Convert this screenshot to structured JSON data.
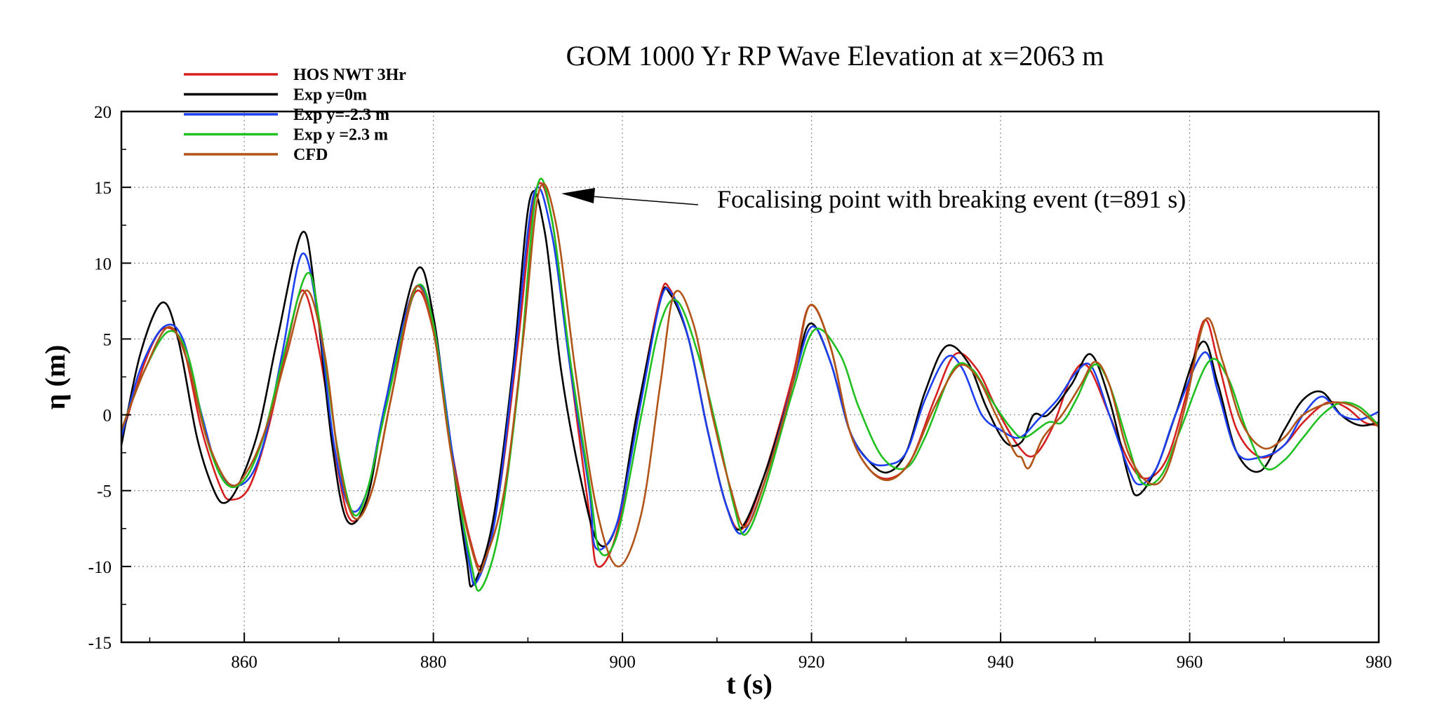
{
  "chart_data": {
    "type": "line",
    "title": "GOM 1000 Yr RP Wave Elevation at x=2063 m",
    "xlabel": "t (s)",
    "ylabel": "η (m)",
    "xlim": [
      847,
      980
    ],
    "ylim": [
      -15,
      20
    ],
    "xticks": [
      860,
      880,
      900,
      920,
      940,
      960,
      980
    ],
    "yticks": [
      -15,
      -10,
      -5,
      0,
      5,
      10,
      15,
      20
    ],
    "grid": true,
    "legend_position": "top-left",
    "annotation": {
      "text": "Focalising point with breaking event (t=891 s)",
      "points_to": [
        891,
        14.8
      ]
    },
    "series": [
      {
        "name": "HOS NWT 3Hr",
        "color": "#d62020",
        "x": [
          847,
          849.5,
          851.5,
          853.5,
          855.5,
          857.5,
          858.6,
          860.5,
          862.5,
          864.5,
          866.2,
          868,
          870,
          871.4,
          873.5,
          875.5,
          878,
          880,
          882,
          884,
          885.2,
          887,
          889,
          890.8,
          892.5,
          894.5,
          896.5,
          897.4,
          899.5,
          902,
          904,
          905,
          907,
          909,
          911,
          912.7,
          915,
          918,
          919.8,
          922,
          924,
          926,
          928.2,
          930.5,
          933,
          935.2,
          937.5,
          939.5,
          941.8,
          943.5,
          945.5,
          947.5,
          949.2,
          951.5,
          953.5,
          955.3,
          957.5,
          959.5,
          961.5,
          963,
          965,
          967.5,
          970,
          972,
          974.5,
          976.5,
          978.5,
          980
        ],
        "y": [
          -1.5,
          3.5,
          5.7,
          4.5,
          -1,
          -4.8,
          -5.6,
          -4.8,
          -1,
          4.5,
          8.2,
          4,
          -4,
          -7,
          -5,
          1,
          8,
          5.5,
          -2.5,
          -8.5,
          -9.8,
          -5,
          5,
          14.7,
          13,
          3,
          -6.5,
          -10,
          -7.5,
          1.5,
          7.8,
          8.3,
          5,
          -1,
          -6,
          -7.5,
          -4,
          2.5,
          7.2,
          4.5,
          -1,
          -3.5,
          -4.2,
          -3,
          1,
          4,
          3,
          0.5,
          -2,
          -2.7,
          -0.8,
          2.5,
          3.2,
          0,
          -3,
          -4.2,
          -3,
          1,
          6.2,
          3.5,
          -1,
          -2.8,
          -2,
          -0.5,
          0.8,
          0.5,
          -0.5,
          -0.7
        ]
      },
      {
        "name": "Exp y=0m",
        "color": "#000000",
        "x": [
          847,
          849,
          851.3,
          853,
          855,
          856.8,
          858,
          859.5,
          861.5,
          863.5,
          866.1,
          867.5,
          869.3,
          870.9,
          873,
          875,
          878.2,
          880,
          881.8,
          883.5,
          884.2,
          886.3,
          888.4,
          890.2,
          891.8,
          893.5,
          895.5,
          897.5,
          899.5,
          901.5,
          904,
          905,
          907,
          909,
          911,
          912.5,
          915,
          918,
          919.8,
          922,
          924,
          926,
          928,
          930,
          932,
          934.2,
          936.5,
          938.5,
          940.5,
          942.2,
          943.5,
          945,
          947.5,
          949.5,
          951.5,
          953.5,
          954.5,
          956.5,
          958.5,
          961.3,
          963,
          965,
          967.5,
          970,
          972,
          974,
          976,
          978,
          980
        ],
        "y": [
          -2,
          4,
          7.4,
          5,
          -1.5,
          -5,
          -5.8,
          -4.5,
          -1,
          5,
          12,
          8,
          -2,
          -7,
          -5.5,
          1,
          9.5,
          6.5,
          -2,
          -9.5,
          -11.2,
          -7,
          3,
          14.2,
          12,
          3,
          -4,
          -8.5,
          -7,
          0,
          7.5,
          8,
          5,
          -1,
          -6,
          -7.5,
          -4,
          2,
          6,
          3.5,
          -1,
          -3,
          -3.8,
          -2.5,
          1.5,
          4.5,
          3.5,
          0.5,
          -1.8,
          -1.8,
          0,
          0,
          2,
          4,
          1,
          -4,
          -5.3,
          -3.5,
          0,
          4.8,
          2,
          -2.5,
          -3.7,
          -1,
          1,
          1.5,
          0,
          -0.7,
          -0.5
        ]
      },
      {
        "name": "Exp y=-2.3 m",
        "color": "#1c3ff0",
        "x": [
          847,
          849,
          851.5,
          853.5,
          855.5,
          857.5,
          860,
          862,
          864,
          866.1,
          867.8,
          869.5,
          871.2,
          873,
          875,
          878,
          880,
          882,
          883.8,
          884.6,
          886.5,
          888.5,
          890.6,
          892.5,
          894.5,
          896.5,
          897.2,
          899.5,
          902,
          904,
          905.2,
          907,
          909,
          911,
          912.7,
          915,
          918,
          920,
          922,
          924,
          926,
          928,
          930,
          932,
          934.3,
          936,
          938,
          940,
          942,
          944,
          946,
          948,
          949.6,
          951.5,
          953.5,
          954.7,
          956.5,
          958.5,
          961.5,
          963,
          965,
          967.5,
          970,
          972,
          974,
          976,
          978,
          980
        ],
        "y": [
          -1.5,
          3,
          5.8,
          5,
          0,
          -4,
          -4.5,
          -2,
          4,
          10.6,
          6.5,
          -2,
          -6.2,
          -5,
          1,
          8.3,
          6,
          -2.5,
          -9.8,
          -11,
          -7,
          3,
          14.5,
          12,
          3,
          -5,
          -8.8,
          -7,
          1,
          7.5,
          8,
          5,
          -1,
          -6,
          -7.8,
          -4.5,
          2,
          5.8,
          3.5,
          -1,
          -3,
          -3.3,
          -2.5,
          1,
          3.8,
          3,
          0,
          -1,
          -1.5,
          -0.3,
          1,
          2.8,
          3.2,
          0,
          -3.5,
          -4.6,
          -3.5,
          0,
          4.1,
          1.5,
          -2.5,
          -2.8,
          -2,
          0,
          1.2,
          0,
          -0.3,
          0.2
        ]
      },
      {
        "name": "Exp y =2.3 m",
        "color": "#20c020",
        "x": [
          847,
          849.5,
          852,
          854,
          856,
          858,
          860,
          862,
          864,
          866.6,
          868,
          869.8,
          871.5,
          873,
          875,
          878.1,
          880,
          882,
          884,
          885,
          887,
          889,
          890.9,
          892.5,
          894.5,
          896.5,
          897.6,
          899.5,
          902,
          904,
          905.8,
          908,
          910,
          911.8,
          913,
          915,
          918,
          920.3,
          923,
          925,
          927.5,
          930,
          932,
          935,
          937,
          939,
          941,
          942.5,
          945,
          946.5,
          948,
          949.9,
          951.5,
          953.5,
          955,
          957,
          959,
          962,
          964,
          966,
          968,
          970,
          972,
          974,
          976,
          978,
          980
        ],
        "y": [
          -1,
          3,
          5.5,
          4,
          -1.5,
          -4.5,
          -4.3,
          -1.5,
          3.5,
          9.3,
          6,
          -2,
          -6.5,
          -5,
          0.5,
          8.3,
          6,
          -3,
          -9.8,
          -11.5,
          -7.5,
          2,
          14.8,
          13,
          3.5,
          -4.5,
          -9,
          -7.8,
          0,
          6,
          7.5,
          4,
          -1,
          -6,
          -7.9,
          -5,
          1.5,
          5.6,
          4,
          0.5,
          -2.8,
          -3.5,
          -1.5,
          3,
          3,
          1,
          -0.8,
          -1.5,
          -0.5,
          -0.5,
          1,
          3.3,
          2,
          -2,
          -4.5,
          -4,
          -1,
          3.5,
          2.5,
          -1,
          -3.5,
          -3,
          -1.5,
          0,
          0.8,
          0.5,
          -0.7
        ]
      },
      {
        "name": "CFD",
        "color": "#b05418",
        "x": [
          847,
          849.5,
          852,
          854,
          856,
          858.5,
          860.5,
          862.5,
          864.5,
          866.6,
          868.5,
          870,
          871.6,
          873.5,
          875.5,
          878,
          880,
          882,
          884.5,
          885.5,
          887.5,
          889.5,
          891.2,
          893,
          895,
          897.2,
          899.5,
          902,
          904,
          905.5,
          907.5,
          909.5,
          911.5,
          913,
          915,
          918,
          919.8,
          922,
          924,
          926,
          928.2,
          930.5,
          933,
          935.5,
          937.5,
          939.5,
          941.5,
          942.2,
          943,
          944.5,
          946.5,
          948.5,
          950,
          951.5,
          953.5,
          955.7,
          957.5,
          959.5,
          961.7,
          963.5,
          965.5,
          967.8,
          970,
          972,
          975,
          977.5,
          980
        ],
        "y": [
          -1,
          3,
          5.8,
          3.5,
          -1.5,
          -4.6,
          -3.5,
          -0.5,
          4,
          8.2,
          4,
          -3,
          -6.8,
          -5,
          1,
          8.3,
          5.5,
          -3,
          -9.8,
          -9.5,
          -5,
          5,
          14.8,
          12.5,
          3,
          -6,
          -10,
          -6.5,
          2,
          8,
          6,
          0,
          -5,
          -7.4,
          -4.5,
          2,
          7.2,
          4.5,
          -1,
          -3.5,
          -4.3,
          -3,
          0.5,
          3.2,
          2.5,
          0,
          -2.5,
          -2.8,
          -3.5,
          -1.5,
          0,
          2,
          3.5,
          2,
          -2.5,
          -4.5,
          -3.8,
          0.5,
          6.3,
          3.5,
          -0.5,
          -2.2,
          -1.5,
          0,
          0.8,
          0.5,
          -0.8
        ]
      }
    ]
  }
}
